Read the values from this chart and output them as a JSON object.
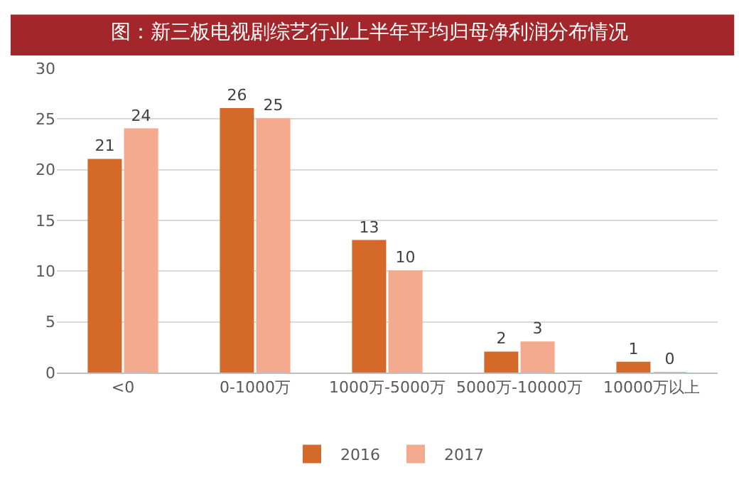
{
  "chart_data": {
    "type": "bar",
    "title": "图：新三板电视剧综艺行业上半年平均归母净利润分布情况",
    "categories": [
      "<0",
      "0-1000万",
      "1000万-5000万",
      "5000万-10000万",
      "10000万以上"
    ],
    "series": [
      {
        "name": "2016",
        "color": "#d4692a",
        "values": [
          21,
          26,
          13,
          2,
          1
        ]
      },
      {
        "name": "2017",
        "color": "#f4aa8e",
        "values": [
          24,
          25,
          10,
          3,
          0
        ]
      }
    ],
    "ylim": [
      0,
      30
    ],
    "yticks": [
      0,
      5,
      10,
      15,
      20,
      25,
      30
    ],
    "grid": "y",
    "legend": "bottom",
    "data_labels": true
  }
}
